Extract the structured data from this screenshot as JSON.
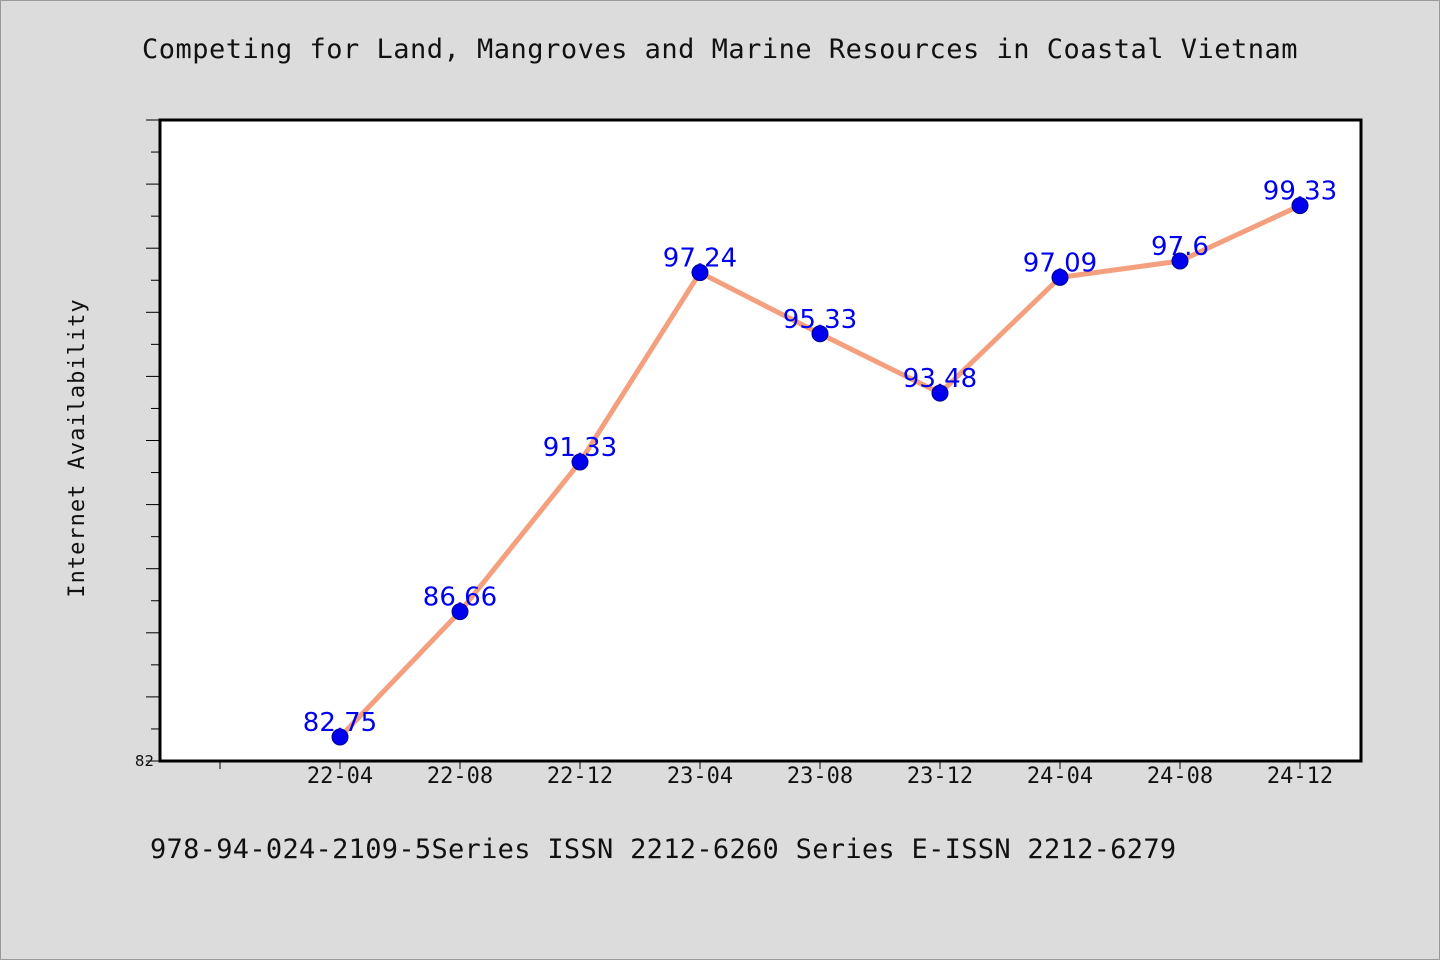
{
  "title": "Competing for Land, Mangroves and Marine Resources in Coastal Vietnam",
  "footer": "978-94-024-2109-5Series ISSN 2212-6260 Series E-ISSN 2212-6279",
  "chart_data": {
    "type": "line",
    "title": "Competing for Land, Mangroves and Marine Resources in Coastal Vietnam",
    "xlabel": "",
    "ylabel": "Internet Availability",
    "categories": [
      "22-04",
      "22-08",
      "22-12",
      "23-04",
      "23-08",
      "23-12",
      "24-04",
      "24-08",
      "24-12"
    ],
    "series": [
      {
        "values": [
          82.75,
          86.66,
          91.33,
          97.24,
          95.33,
          93.48,
          97.09,
          97.6,
          99.33
        ],
        "labels": [
          "82.75",
          "86.66",
          "91.33",
          "97.24",
          "95.33",
          "93.48",
          "97.09",
          "97.6",
          "99.33"
        ]
      }
    ],
    "ylim": [
      82,
      102
    ],
    "yticks_labeled": [
      "82"
    ],
    "grid": false,
    "legend": "none",
    "colors": {
      "line": "#f4a07e",
      "marker": "#0000ee",
      "label": "#0000ee"
    }
  }
}
